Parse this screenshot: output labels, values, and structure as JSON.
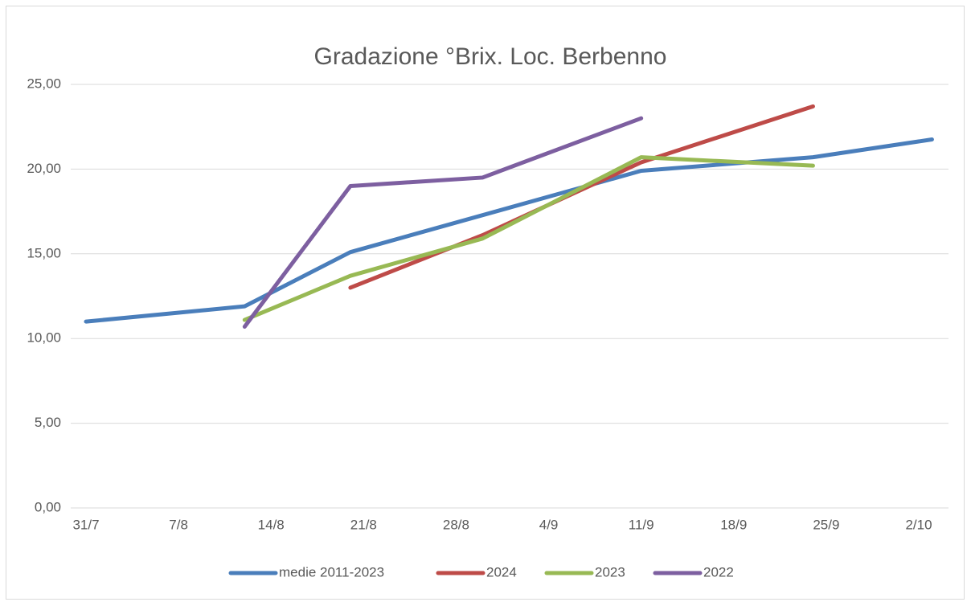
{
  "chart_data": {
    "type": "line",
    "title": "Gradazione °Brix. Loc. Berbenno",
    "xticks": [
      "31/7",
      "7/8",
      "14/8",
      "21/8",
      "28/8",
      "4/9",
      "11/9",
      "18/9",
      "25/9",
      "2/10"
    ],
    "ylim": [
      0,
      25
    ],
    "yticks": [
      {
        "value": 0,
        "label": "0,00"
      },
      {
        "value": 5,
        "label": "5,00"
      },
      {
        "value": 10,
        "label": "10,00"
      },
      {
        "value": 15,
        "label": "15,00"
      },
      {
        "value": 20,
        "label": "20,00"
      },
      {
        "value": 25,
        "label": "25,00"
      }
    ],
    "grid": true,
    "legend": "bottom",
    "series": [
      {
        "name": "medie 2011-2023",
        "color": "#4a7ebb",
        "x": [
          "31/7",
          "12/8",
          "20/8",
          "11/9",
          "24/9",
          "3/10"
        ],
        "values": [
          11.0,
          11.9,
          15.1,
          19.9,
          20.7,
          21.75
        ]
      },
      {
        "name": "2024",
        "color": "#be4b48",
        "x": [
          "20/8",
          "30/8",
          "11/9",
          "24/9"
        ],
        "values": [
          13.0,
          16.1,
          20.4,
          23.7
        ]
      },
      {
        "name": "2023",
        "color": "#98b954",
        "x": [
          "12/8",
          "20/8",
          "30/8",
          "11/9",
          "24/9"
        ],
        "values": [
          11.1,
          13.7,
          15.9,
          20.7,
          20.2
        ]
      },
      {
        "name": "2022",
        "color": "#7d5fa0",
        "x": [
          "12/8",
          "20/8",
          "30/8",
          "11/9"
        ],
        "values": [
          10.7,
          19.0,
          19.5,
          23.0
        ]
      }
    ]
  }
}
